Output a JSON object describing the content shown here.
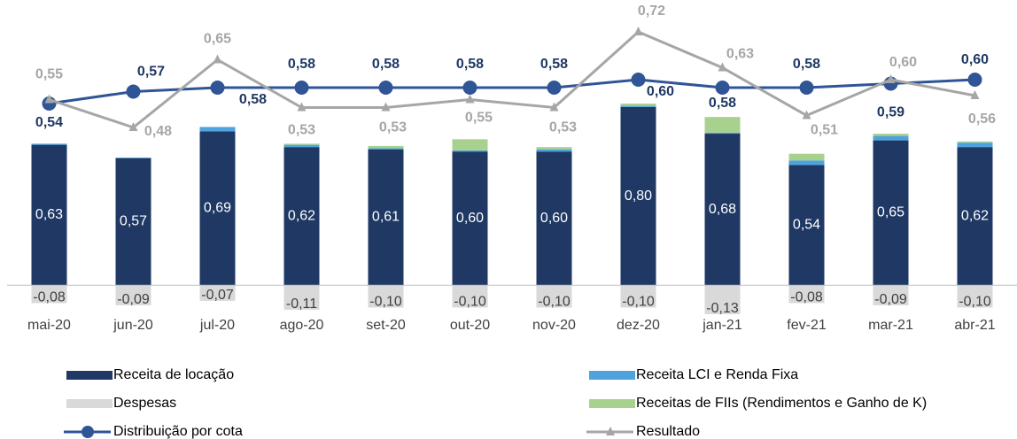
{
  "chart_data": {
    "type": "bar-line",
    "categories": [
      "mai-20",
      "jun-20",
      "jul-20",
      "ago-20",
      "set-20",
      "out-20",
      "nov-20",
      "dez-20",
      "jan-21",
      "fev-21",
      "mar-21",
      "abr-21"
    ],
    "ylim": [
      -0.15,
      1.28
    ],
    "y2lim": [
      0,
      0.8
    ],
    "series": [
      {
        "name": "Receita de locação",
        "kind": "bar",
        "color": "#1f3864",
        "values": [
          0.63,
          0.57,
          0.69,
          0.62,
          0.61,
          0.6,
          0.6,
          0.8,
          0.68,
          0.54,
          0.65,
          0.62
        ],
        "value_labels": [
          "0,63",
          "0,57",
          "0,69",
          "0,62",
          "0,61",
          "0,60",
          "0,60",
          "0,80",
          "0,68",
          "0,54",
          "0,65",
          "0,62"
        ]
      },
      {
        "name": "Receita LCI e Renda Fixa",
        "kind": "bar",
        "color": "#4ea3dc",
        "values": [
          0.005,
          0.003,
          0.02,
          0.01,
          0.005,
          0.005,
          0.01,
          0.005,
          0.005,
          0.02,
          0.02,
          0.02
        ]
      },
      {
        "name": "Despesas",
        "kind": "bar",
        "color": "#d9d9d9",
        "values": [
          -0.08,
          -0.09,
          -0.07,
          -0.11,
          -0.1,
          -0.1,
          -0.1,
          -0.1,
          -0.13,
          -0.08,
          -0.09,
          -0.1
        ],
        "value_labels": [
          "-0,08",
          "-0,09",
          "-0,07",
          "-0,11",
          "-0,10",
          "-0,10",
          "-0,10",
          "-0,10",
          "-0,13",
          "-0,08",
          "-0,09",
          "-0,10"
        ]
      },
      {
        "name": "Receitas de FIIs (Rendimentos e Ganho de K)",
        "kind": "bar",
        "color": "#a9d18e",
        "values": [
          0,
          0,
          0,
          0.005,
          0.01,
          0.05,
          0.01,
          0.01,
          0.07,
          0.03,
          0.01,
          0.005
        ]
      },
      {
        "name": "Distribuição por cota",
        "kind": "line",
        "axis": "y2",
        "color": "#2f5597",
        "values": [
          0.54,
          0.57,
          0.58,
          0.58,
          0.58,
          0.58,
          0.58,
          0.6,
          0.58,
          0.58,
          0.59,
          0.6
        ],
        "value_labels": [
          "0,54",
          "0,57",
          "0,58",
          "0,58",
          "0,58",
          "0,58",
          "0,58",
          "0,60",
          "0,58",
          "0,58",
          "0,59",
          "0,60"
        ]
      },
      {
        "name": "Resultado",
        "kind": "line",
        "axis": "y2",
        "color": "#a6a6a6",
        "values": [
          0.55,
          0.48,
          0.65,
          0.53,
          0.53,
          0.55,
          0.53,
          0.72,
          0.63,
          0.51,
          0.6,
          0.56
        ],
        "value_labels": [
          "0,55",
          "0,48",
          "0,65",
          "0,53",
          "0,53",
          "0,55",
          "0,53",
          "0,72",
          "0,63",
          "0,51",
          "0,60",
          "0,56"
        ]
      }
    ]
  }
}
